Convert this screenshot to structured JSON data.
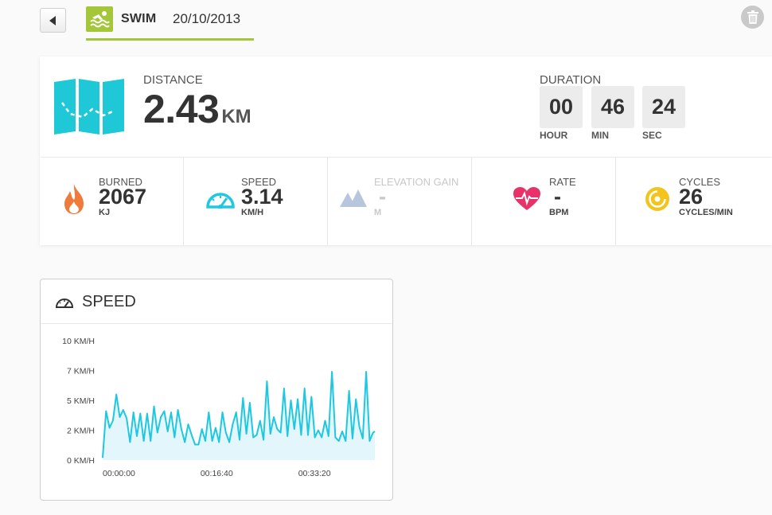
{
  "header": {
    "sport": "SWIM",
    "date": "20/10/2013",
    "accent_color": "#a4c639"
  },
  "distance": {
    "label": "DISTANCE",
    "value": "2.43",
    "unit": "KM"
  },
  "duration": {
    "label": "DURATION",
    "hours": "00",
    "hours_label": "HOUR",
    "minutes": "46",
    "minutes_label": "MIN",
    "seconds": "24",
    "seconds_label": "SEC"
  },
  "stats": [
    {
      "label": "BURNED",
      "value": "2067",
      "unit": "KJ",
      "icon": "flame-icon",
      "color": "#f07a3a"
    },
    {
      "label": "SPEED",
      "value": "3.14",
      "unit": "KM/H",
      "icon": "speedometer-icon",
      "color": "#1ec8e0"
    },
    {
      "label": "ELEVATION GAIN",
      "value": "-",
      "unit": "M",
      "icon": "mountains-icon",
      "color": "#b8c6dd"
    },
    {
      "label": "RATE",
      "value": "-",
      "unit": "BPM",
      "icon": "heart-rate-icon",
      "color": "#e8336a"
    },
    {
      "label": "CYCLES",
      "value": "26",
      "unit": "CYCLES/MIN",
      "icon": "cycles-icon",
      "color": "#f2c41c"
    }
  ],
  "speed_panel": {
    "title": "SPEED"
  },
  "chart_data": {
    "type": "area",
    "x_tick_labels": [
      "00:00:00",
      "00:16:40",
      "00:33:20"
    ],
    "x_ticks_seconds": [
      0,
      1000,
      2000
    ],
    "xlim_seconds": [
      0,
      2784
    ],
    "y_tick_labels": [
      "0 KM/H",
      "2 KM/H",
      "5 KM/H",
      "7 KM/H",
      "10 KM/H"
    ],
    "y_ticks": [
      0,
      2.5,
      5,
      7.5,
      10
    ],
    "ylim": [
      0,
      10
    ],
    "line_color": "#1ec8e0",
    "fill_color": "#e3f6fb",
    "x": [
      0,
      35,
      70,
      105,
      140,
      175,
      210,
      245,
      280,
      315,
      350,
      385,
      420,
      455,
      490,
      525,
      560,
      595,
      630,
      665,
      700,
      735,
      770,
      805,
      840,
      875,
      910,
      945,
      980,
      1015,
      1050,
      1085,
      1120,
      1155,
      1190,
      1225,
      1260,
      1295,
      1330,
      1365,
      1400,
      1435,
      1470,
      1505,
      1540,
      1575,
      1610,
      1645,
      1680,
      1715,
      1750,
      1785,
      1820,
      1855,
      1890,
      1925,
      1960,
      1995,
      2030,
      2065,
      2100,
      2135,
      2170,
      2205,
      2240,
      2275,
      2310,
      2345,
      2380,
      2415,
      2450,
      2485,
      2520,
      2555,
      2590,
      2625,
      2660,
      2695,
      2730,
      2765,
      2784
    ],
    "values": [
      0.2,
      4.1,
      2.7,
      3.3,
      5.5,
      3.6,
      4.2,
      3.5,
      1.5,
      4.0,
      2.0,
      3.9,
      1.6,
      3.9,
      1.6,
      4.5,
      2.3,
      3.6,
      4.1,
      2.4,
      4.0,
      1.9,
      4.2,
      2.6,
      1.5,
      3.0,
      2.1,
      1.3,
      1.3,
      2.6,
      1.6,
      4.0,
      1.6,
      2.7,
      1.5,
      4.0,
      2.3,
      1.5,
      3.0,
      4.0,
      1.7,
      5.2,
      2.2,
      4.8,
      1.9,
      2.1,
      3.3,
      1.7,
      6.6,
      2.2,
      3.6,
      2.6,
      2.3,
      6.0,
      2.0,
      5.0,
      2.6,
      5.1,
      2.1,
      6.0,
      2.1,
      5.3,
      1.9,
      2.5,
      1.9,
      3.3,
      2.0,
      7.4,
      1.9,
      1.6,
      2.4,
      1.6,
      5.8,
      1.8,
      5.1,
      2.8,
      1.8,
      7.4,
      1.6,
      2.3,
      2.4
    ]
  }
}
